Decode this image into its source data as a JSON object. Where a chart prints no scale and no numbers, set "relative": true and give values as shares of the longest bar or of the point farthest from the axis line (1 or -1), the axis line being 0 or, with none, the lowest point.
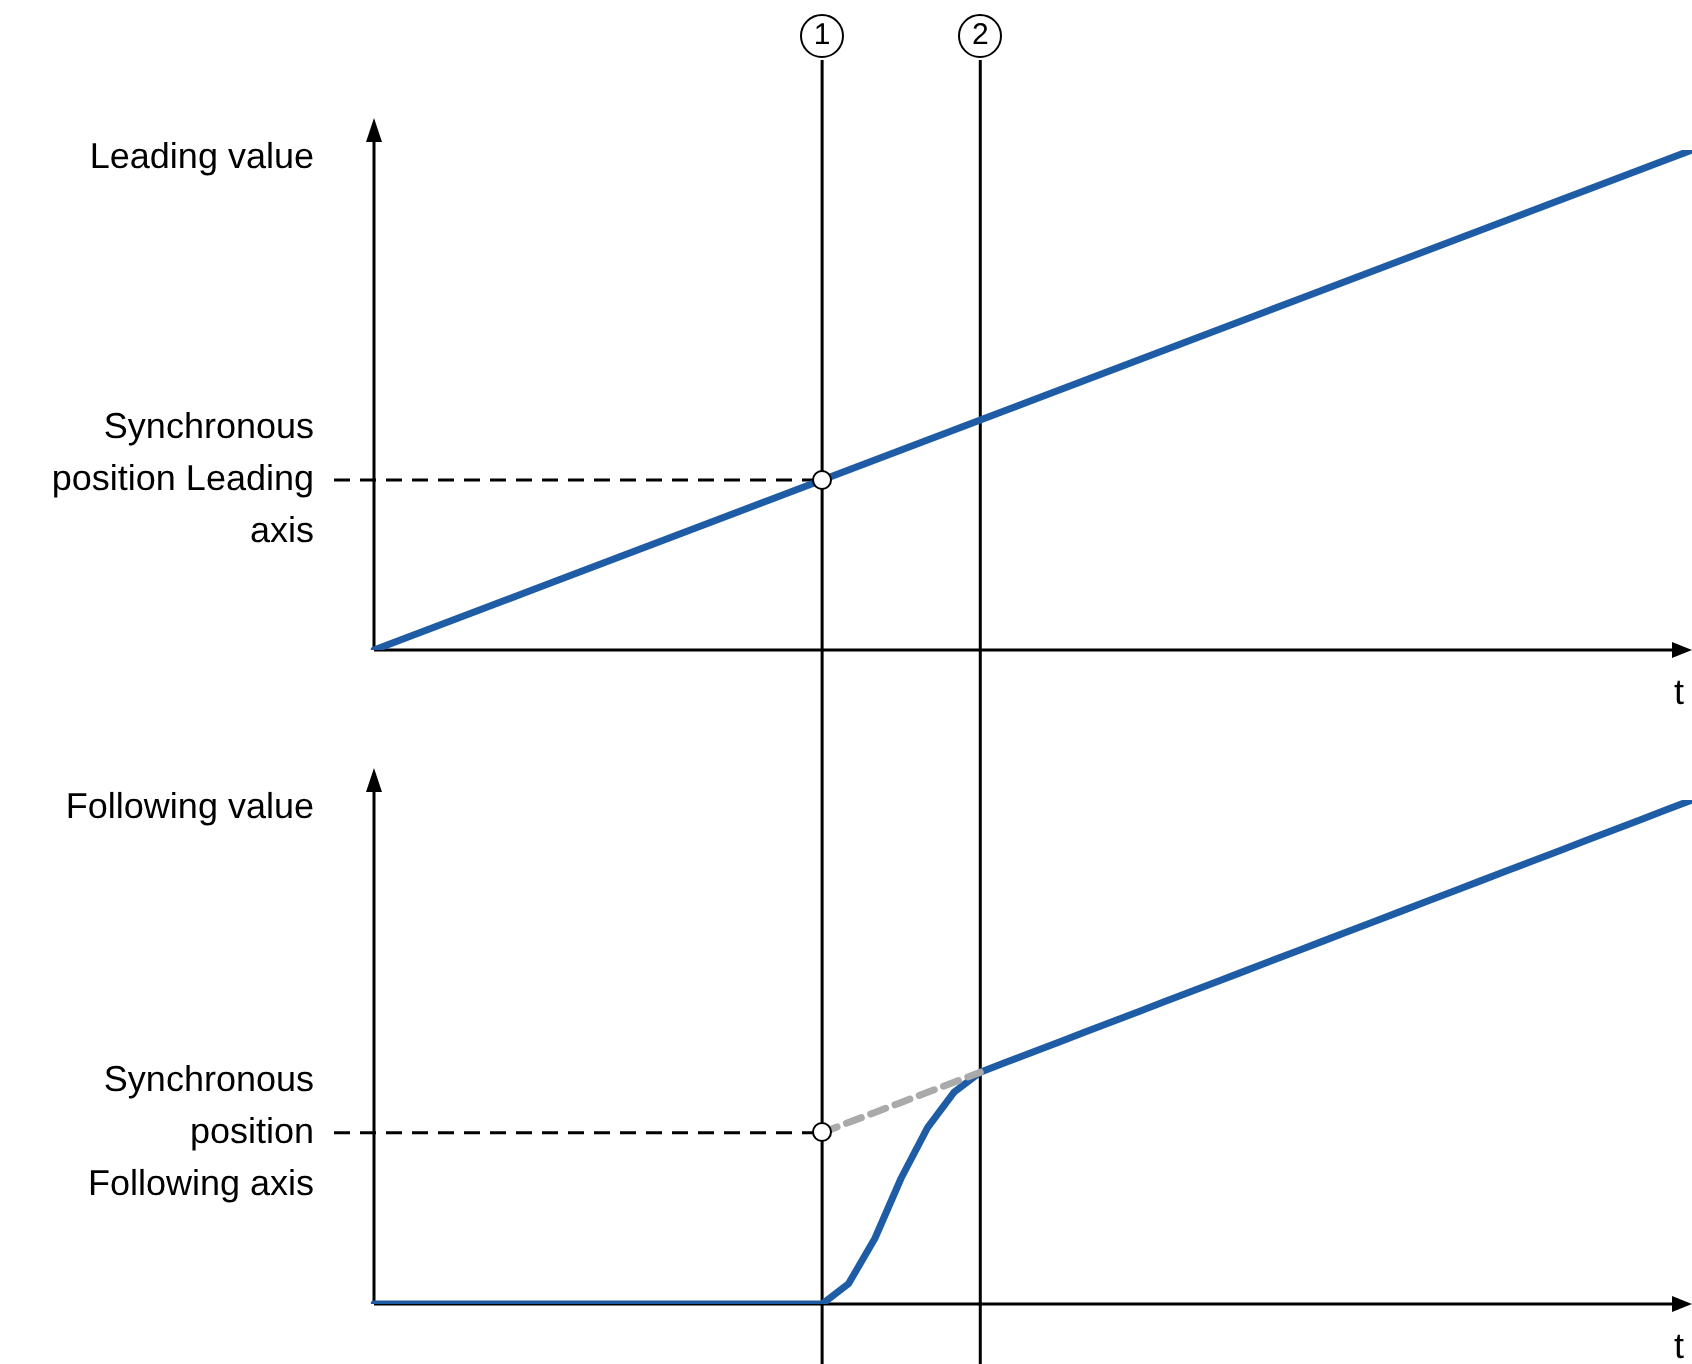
{
  "chart_data": [
    {
      "type": "line",
      "ylabel": "Leading value",
      "xlabel": "t",
      "relative": true,
      "categories": [
        null,
        null,
        null,
        null,
        null,
        null,
        null,
        null,
        null,
        null,
        null,
        null,
        null,
        null,
        null,
        null,
        null,
        null,
        null,
        null,
        null,
        null,
        null,
        null,
        null,
        null,
        null,
        null,
        null,
        null,
        null,
        null,
        null,
        null,
        null,
        null,
        null,
        null,
        null,
        null,
        null,
        null,
        null,
        null,
        null,
        null,
        null,
        null,
        null,
        null,
        null
      ],
      "series": [
        {
          "type": "line",
          "color": "#1f5ca6",
          "values": [
            0,
            0.02,
            0.04,
            0.06,
            0.08,
            0.1,
            0.12,
            0.14,
            0.16,
            0.18,
            0.2,
            0.22,
            0.24,
            0.26,
            0.28,
            0.3,
            0.32,
            0.34,
            0.36,
            0.38,
            0.4,
            0.42,
            0.44,
            0.46,
            0.48,
            0.5,
            0.52,
            0.54,
            0.56,
            0.58,
            0.6,
            0.62,
            0.64,
            0.66,
            0.68,
            0.7,
            0.72,
            0.74,
            0.76,
            0.78,
            0.8,
            0.82,
            0.84,
            0.86,
            0.88,
            0.9,
            0.92,
            0.94,
            0.96,
            0.98,
            1
          ]
        }
      ],
      "annotations": [
        "1",
        "2",
        "Synchronous position Leading axis"
      ]
    },
    {
      "type": "line",
      "ylabel": "Following value",
      "xlabel": "t",
      "relative": true,
      "categories": [
        null,
        null,
        null,
        null,
        null,
        null,
        null,
        null,
        null,
        null,
        null,
        null,
        null,
        null,
        null,
        null,
        null,
        null,
        null,
        null,
        null,
        null,
        null,
        null,
        null,
        null,
        null,
        null,
        null,
        null,
        null,
        null,
        null,
        null,
        null,
        null,
        null,
        null,
        null,
        null,
        null,
        null,
        null,
        null,
        null,
        null,
        null,
        null,
        null,
        null,
        null
      ],
      "series": [
        {
          "type": "line",
          "color": "#1f5ca6",
          "values": [
            0,
            0,
            0,
            0,
            0,
            0,
            0,
            0,
            0,
            0,
            0,
            0,
            0,
            0,
            0,
            0,
            0,
            0,
            0.04,
            0.13,
            0.25,
            0.35,
            0.42,
            0.46,
            0.48,
            0.5,
            0.52,
            0.54,
            0.56,
            0.58,
            0.6,
            0.62,
            0.64,
            0.66,
            0.68,
            0.7,
            0.72,
            0.74,
            0.76,
            0.78,
            0.8,
            0.82,
            0.84,
            0.86,
            0.88,
            0.9,
            0.92,
            0.94,
            0.96,
            0.98,
            1
          ]
        },
        {
          "type": "line",
          "color": "#aaaaaa",
          "line_style": "dashed",
          "values": [
            null,
            null,
            null,
            null,
            null,
            null,
            null,
            null,
            null,
            null,
            null,
            null,
            null,
            null,
            null,
            null,
            null,
            0.34,
            0.36,
            0.38,
            0.4,
            0.42,
            0.44,
            0.46,
            null,
            null,
            null,
            null,
            null,
            null,
            null,
            null,
            null,
            null,
            null,
            null,
            null,
            null,
            null,
            null,
            null,
            null,
            null,
            null,
            null,
            null,
            null,
            null,
            null,
            null,
            null
          ]
        }
      ],
      "annotations": [
        "Synchronous position Following axis"
      ]
    }
  ]
}
